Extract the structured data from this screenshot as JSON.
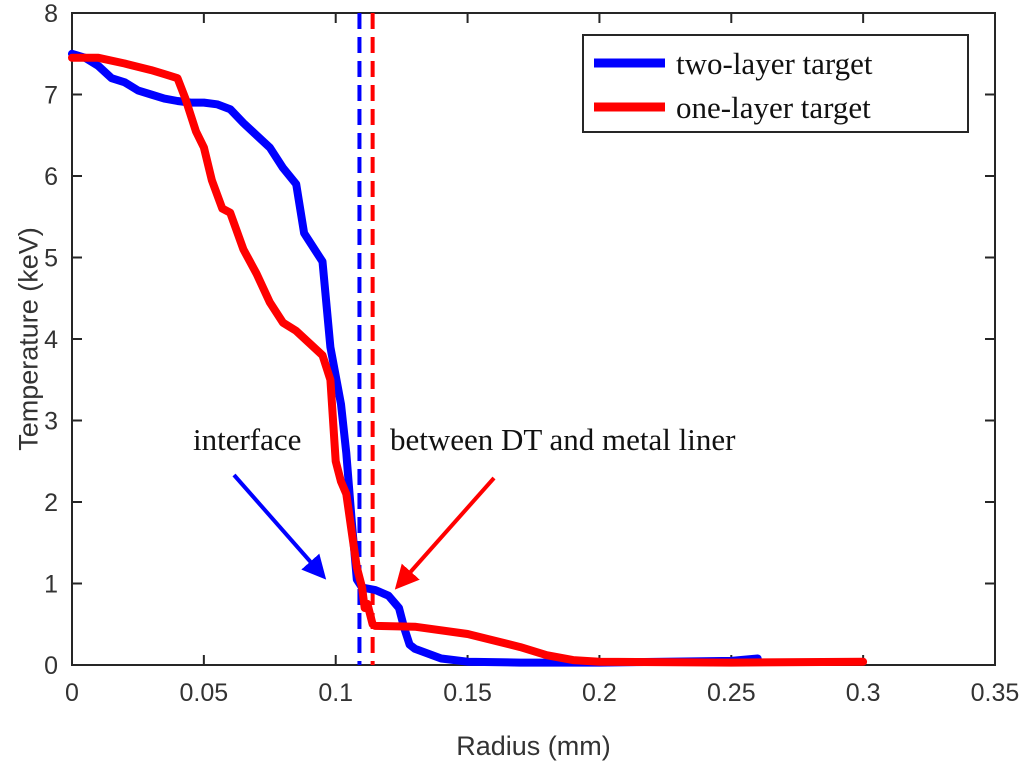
{
  "chart_data": {
    "type": "line",
    "title": "",
    "xlabel": "Radius (mm)",
    "ylabel": "Temperature (keV)",
    "xlim": [
      0,
      0.35
    ],
    "ylim": [
      0,
      8
    ],
    "xticks": [
      "0",
      "0.05",
      "0.1",
      "0.15",
      "0.2",
      "0.25",
      "0.3",
      "0.35"
    ],
    "yticks": [
      "0",
      "1",
      "2",
      "3",
      "4",
      "5",
      "6",
      "7",
      "8"
    ],
    "grid": false,
    "legend_position": "top-right",
    "series": [
      {
        "name": "two-layer target",
        "color": "#0000ff",
        "x": [
          0,
          0.005,
          0.01,
          0.015,
          0.02,
          0.025,
          0.03,
          0.035,
          0.04,
          0.045,
          0.05,
          0.055,
          0.06,
          0.065,
          0.07,
          0.075,
          0.08,
          0.085,
          0.088,
          0.09,
          0.095,
          0.098,
          0.1,
          0.102,
          0.104,
          0.106,
          0.108,
          0.11,
          0.115,
          0.12,
          0.124,
          0.126,
          0.128,
          0.13,
          0.14,
          0.15,
          0.17,
          0.2,
          0.25,
          0.26
        ],
        "y": [
          7.5,
          7.45,
          7.35,
          7.2,
          7.15,
          7.05,
          7.0,
          6.95,
          6.92,
          6.9,
          6.9,
          6.88,
          6.82,
          6.65,
          6.5,
          6.35,
          6.1,
          5.9,
          5.3,
          5.2,
          4.95,
          3.9,
          3.55,
          3.2,
          2.6,
          1.8,
          1.05,
          0.95,
          0.92,
          0.85,
          0.7,
          0.45,
          0.25,
          0.2,
          0.08,
          0.04,
          0.03,
          0.03,
          0.05,
          0.08
        ]
      },
      {
        "name": "one-layer target",
        "color": "#ff0000",
        "x": [
          0,
          0.01,
          0.02,
          0.03,
          0.035,
          0.04,
          0.043,
          0.047,
          0.05,
          0.053,
          0.057,
          0.06,
          0.065,
          0.07,
          0.075,
          0.08,
          0.085,
          0.09,
          0.095,
          0.098,
          0.1,
          0.102,
          0.104,
          0.106,
          0.108,
          0.11,
          0.111,
          0.112,
          0.114,
          0.115,
          0.13,
          0.15,
          0.17,
          0.18,
          0.19,
          0.2,
          0.25,
          0.3
        ],
        "y": [
          7.45,
          7.45,
          7.38,
          7.3,
          7.25,
          7.2,
          6.95,
          6.55,
          6.35,
          5.95,
          5.6,
          5.55,
          5.1,
          4.8,
          4.45,
          4.2,
          4.1,
          3.95,
          3.8,
          3.5,
          2.5,
          2.25,
          2.1,
          1.65,
          1.2,
          0.95,
          0.7,
          0.75,
          0.5,
          0.48,
          0.47,
          0.38,
          0.22,
          0.12,
          0.06,
          0.04,
          0.03,
          0.04
        ]
      }
    ],
    "vertical_lines": [
      {
        "x": 0.109,
        "color": "#0000ff",
        "style": "dashed"
      },
      {
        "x": 0.114,
        "color": "#ff0000",
        "style": "dashed"
      }
    ],
    "annotations": [
      {
        "text_key": "interface",
        "text": "interface"
      },
      {
        "text_key": "between",
        "text": "between DT and metal liner"
      }
    ]
  }
}
